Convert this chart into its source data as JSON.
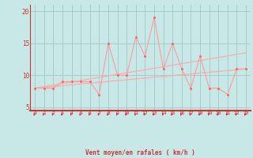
{
  "xlabel": "Vent moyen/en rafales ( km/h )",
  "bg_color": "#c8e8e8",
  "grid_color": "#a0c8c8",
  "line_color": "#ff9999",
  "scatter_color": "#ff6666",
  "trend_color": "#ffaaaa",
  "spine_color": "#cc3333",
  "tick_color": "#cc3333",
  "label_color": "#cc3333",
  "xlim": [
    -0.5,
    23.5
  ],
  "ylim": [
    4.5,
    21.0
  ],
  "yticks": [
    5,
    10,
    15,
    20
  ],
  "xticks": [
    0,
    1,
    2,
    3,
    4,
    5,
    6,
    7,
    8,
    9,
    10,
    11,
    12,
    13,
    14,
    15,
    16,
    17,
    18,
    19,
    20,
    21,
    22,
    23
  ],
  "scatter_x": [
    0,
    1,
    2,
    3,
    4,
    5,
    6,
    7,
    8,
    9,
    10,
    11,
    12,
    13,
    14,
    15,
    16,
    17,
    18,
    19,
    20,
    21,
    22,
    23
  ],
  "scatter_y": [
    8,
    8,
    8,
    9,
    9,
    9,
    9,
    7,
    15,
    10,
    10,
    16,
    13,
    19,
    11,
    15,
    11,
    8,
    13,
    8,
    8,
    7,
    11,
    11
  ],
  "line1_x": [
    0,
    23
  ],
  "line1_y": [
    8.0,
    11.0
  ],
  "line2_x": [
    0,
    23
  ],
  "line2_y": [
    8.0,
    13.5
  ]
}
